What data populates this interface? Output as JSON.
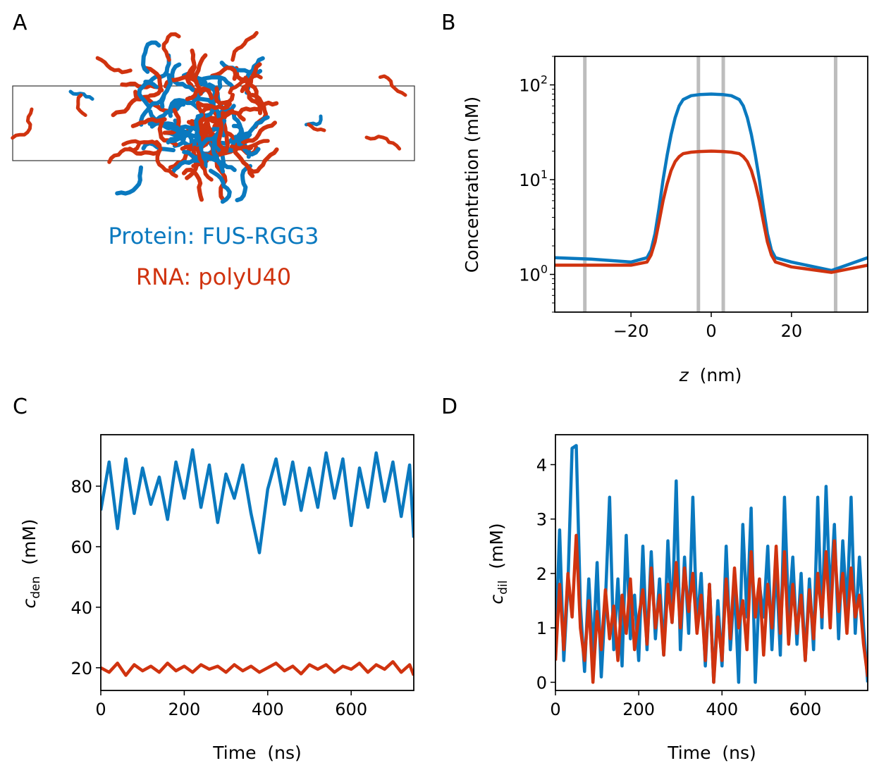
{
  "colors": {
    "protein": "#0a79bf",
    "rna": "#d0330f",
    "boundary": "#bdbdbd",
    "axis": "#000000"
  },
  "panel_a": {
    "letter": "A",
    "legend_protein": "Protein: FUS-RGG3",
    "legend_rna": "RNA: polyU40"
  },
  "chart_data": [
    {
      "id": "B",
      "letter": "B",
      "type": "line",
      "title": "",
      "xlabel_italic": "z",
      "xlabel_rest": "  (nm)",
      "ylabel": "Concentration  (mM)",
      "xlim": [
        -39,
        39
      ],
      "ylim": [
        0.4,
        200
      ],
      "yscale": "log",
      "xticks": [
        -20,
        0,
        20
      ],
      "xtick_labels": [
        "−20",
        "0",
        "20"
      ],
      "yticks": [
        1,
        10,
        100
      ],
      "ytick_base": [
        "10",
        "10",
        "10"
      ],
      "ytick_exp": [
        "0",
        "1",
        "2"
      ],
      "vlines": [
        -31.5,
        -3.2,
        3.0,
        31.0
      ],
      "series": [
        {
          "name": "Protein: FUS-RGG3",
          "color_key": "protein",
          "x": [
            -39,
            -30,
            -20,
            -16,
            -15,
            -14,
            -13,
            -12,
            -11,
            -10,
            -9,
            -8,
            -7,
            -5,
            -3,
            0,
            3,
            5,
            7,
            8,
            9,
            10,
            11,
            12,
            13,
            14,
            15,
            16,
            20,
            30,
            39
          ],
          "y": [
            1.5,
            1.45,
            1.35,
            1.5,
            1.8,
            2.7,
            5,
            10,
            18,
            30,
            45,
            60,
            70,
            77,
            79,
            80,
            79,
            77,
            70,
            60,
            45,
            30,
            18,
            10,
            5,
            2.7,
            1.8,
            1.5,
            1.35,
            1.1,
            1.5
          ]
        },
        {
          "name": "RNA: polyU40",
          "color_key": "rna",
          "x": [
            -39,
            -30,
            -20,
            -16,
            -15,
            -14,
            -13,
            -12,
            -11,
            -10,
            -9,
            -8,
            -7,
            -5,
            -3,
            0,
            3,
            5,
            7,
            8,
            9,
            10,
            11,
            12,
            13,
            14,
            15,
            16,
            20,
            30,
            39
          ],
          "y": [
            1.25,
            1.25,
            1.25,
            1.35,
            1.6,
            2.2,
            3.6,
            6,
            9,
            12.5,
            15.5,
            17.5,
            18.8,
            19.5,
            19.8,
            20,
            19.8,
            19.5,
            18.8,
            17.5,
            15.5,
            12.5,
            9,
            6,
            3.6,
            2.2,
            1.6,
            1.35,
            1.2,
            1.05,
            1.25
          ]
        }
      ]
    },
    {
      "id": "C",
      "letter": "C",
      "type": "line",
      "title": "",
      "xlabel": "Time  (ns)",
      "ylabel_main": "c",
      "ylabel_sub": "den",
      "ylabel_rest": "  (mM)",
      "xlim": [
        0,
        750
      ],
      "ylim": [
        12.5,
        97
      ],
      "xticks": [
        0,
        200,
        400,
        600
      ],
      "yticks": [
        20,
        40,
        60,
        80
      ],
      "series": [
        {
          "name": "Protein: FUS-RGG3",
          "color_key": "protein",
          "x": [
            0,
            20,
            40,
            60,
            80,
            100,
            120,
            140,
            160,
            180,
            200,
            220,
            240,
            260,
            280,
            300,
            320,
            340,
            360,
            380,
            400,
            420,
            440,
            460,
            480,
            500,
            520,
            540,
            560,
            580,
            600,
            620,
            640,
            660,
            680,
            700,
            720,
            740,
            750
          ],
          "y": [
            72,
            88,
            66,
            89,
            71,
            86,
            74,
            83,
            69,
            88,
            76,
            92,
            73,
            87,
            68,
            84,
            76,
            87,
            71,
            58,
            79,
            89,
            74,
            88,
            72,
            86,
            73,
            91,
            76,
            89,
            67,
            86,
            73,
            91,
            75,
            88,
            70,
            87,
            63
          ]
        },
        {
          "name": "RNA: polyU40",
          "color_key": "rna",
          "x": [
            0,
            20,
            40,
            60,
            80,
            100,
            120,
            140,
            160,
            180,
            200,
            220,
            240,
            260,
            280,
            300,
            320,
            340,
            360,
            380,
            400,
            420,
            440,
            460,
            480,
            500,
            520,
            540,
            560,
            580,
            600,
            620,
            640,
            660,
            680,
            700,
            720,
            740,
            750
          ],
          "y": [
            20,
            18.5,
            21.5,
            17.5,
            21,
            19,
            20.5,
            18.5,
            21.5,
            19,
            20.5,
            18.5,
            21,
            19.5,
            20.5,
            18.5,
            21,
            19,
            20.5,
            18.5,
            20,
            21.5,
            19,
            20.5,
            18,
            21,
            19.5,
            21,
            18.5,
            20.5,
            19.5,
            21.5,
            18.5,
            21,
            19.5,
            22,
            18.5,
            21,
            17.5
          ]
        }
      ]
    },
    {
      "id": "D",
      "letter": "D",
      "type": "line",
      "title": "",
      "xlabel": "Time  (ns)",
      "ylabel_main": "c",
      "ylabel_sub": "dil",
      "ylabel_rest": "  (mM)",
      "xlim": [
        0,
        750
      ],
      "ylim": [
        -0.15,
        4.55
      ],
      "xticks": [
        0,
        200,
        400,
        600
      ],
      "yticks": [
        0,
        1,
        2,
        3,
        4
      ],
      "series": [
        {
          "name": "Protein: FUS-RGG3",
          "color_key": "protein",
          "x": [
            0,
            10,
            20,
            30,
            40,
            50,
            60,
            70,
            80,
            90,
            100,
            110,
            120,
            130,
            140,
            150,
            160,
            170,
            180,
            190,
            200,
            210,
            220,
            230,
            240,
            250,
            260,
            270,
            280,
            290,
            300,
            310,
            320,
            330,
            340,
            350,
            360,
            370,
            380,
            390,
            400,
            410,
            420,
            430,
            440,
            450,
            460,
            470,
            480,
            490,
            500,
            510,
            520,
            530,
            540,
            550,
            560,
            570,
            580,
            590,
            600,
            610,
            620,
            630,
            640,
            650,
            660,
            670,
            680,
            690,
            700,
            710,
            720,
            730,
            740,
            750
          ],
          "y": [
            0.6,
            2.8,
            0.4,
            1.8,
            4.3,
            4.35,
            1.4,
            0.2,
            1.9,
            0.5,
            2.2,
            0.1,
            1.5,
            3.4,
            0.6,
            1.9,
            0.3,
            2.7,
            0.8,
            1.6,
            0.4,
            2.5,
            0.6,
            2.4,
            0.8,
            1.9,
            0.5,
            2.6,
            1.1,
            3.7,
            0.6,
            2.3,
            0.9,
            3.4,
            1.0,
            2.0,
            0.3,
            1.8,
            0.0,
            1.5,
            0.3,
            2.5,
            0.6,
            1.8,
            0.0,
            2.9,
            1.2,
            3.2,
            0.0,
            1.8,
            1.2,
            2.5,
            0.6,
            2.2,
            0.5,
            3.4,
            1.2,
            2.3,
            0.7,
            2.0,
            0.4,
            1.9,
            0.6,
            3.4,
            1.0,
            3.6,
            1.5,
            2.9,
            0.8,
            2.6,
            1.3,
            3.4,
            0.9,
            2.3,
            1.0,
            0.0
          ]
        },
        {
          "name": "RNA: polyU40",
          "color_key": "rna",
          "x": [
            0,
            10,
            20,
            30,
            40,
            50,
            60,
            70,
            80,
            90,
            100,
            110,
            120,
            130,
            140,
            150,
            160,
            170,
            180,
            190,
            200,
            210,
            220,
            230,
            240,
            250,
            260,
            270,
            280,
            290,
            300,
            310,
            320,
            330,
            340,
            350,
            360,
            370,
            380,
            390,
            400,
            410,
            420,
            430,
            440,
            450,
            460,
            470,
            480,
            490,
            500,
            510,
            520,
            530,
            540,
            550,
            560,
            570,
            580,
            590,
            600,
            610,
            620,
            630,
            640,
            650,
            660,
            670,
            680,
            690,
            700,
            710,
            720,
            730,
            740,
            750
          ],
          "y": [
            0.4,
            1.8,
            0.6,
            2.0,
            1.2,
            2.7,
            1.0,
            0.4,
            1.5,
            0.0,
            1.3,
            0.6,
            1.7,
            0.8,
            1.4,
            0.4,
            1.6,
            0.9,
            1.9,
            0.6,
            1.2,
            1.7,
            0.7,
            2.1,
            1.0,
            1.6,
            0.5,
            1.8,
            1.1,
            2.2,
            1.0,
            2.1,
            1.3,
            2.0,
            0.9,
            1.6,
            0.4,
            1.8,
            0.0,
            1.2,
            0.4,
            1.9,
            0.8,
            2.1,
            1.0,
            1.5,
            0.6,
            2.4,
            1.2,
            1.9,
            0.5,
            1.8,
            1.0,
            2.5,
            0.9,
            2.4,
            0.7,
            1.8,
            0.9,
            1.6,
            0.4,
            1.7,
            0.8,
            2.0,
            1.2,
            2.4,
            1.0,
            2.6,
            1.3,
            2.0,
            0.9,
            2.1,
            1.2,
            1.6,
            0.7,
            0.1
          ]
        }
      ]
    }
  ]
}
